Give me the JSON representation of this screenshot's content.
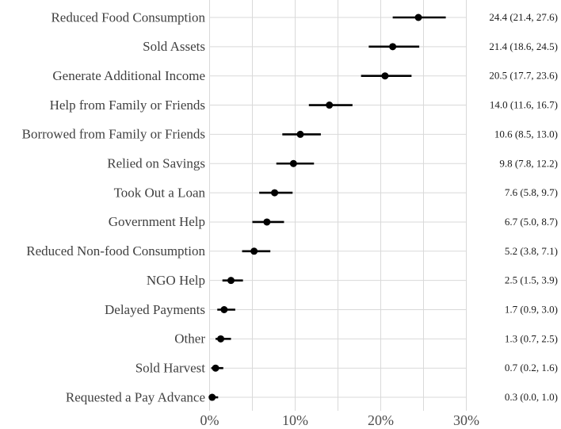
{
  "chart_data": {
    "type": "scatter",
    "variant": "dot-plot-with-error-bars",
    "title": "",
    "xlabel": "",
    "ylabel": "",
    "xlim": [
      0,
      30
    ],
    "x_major_ticks": [
      0,
      10,
      20,
      30
    ],
    "x_major_tick_labels": [
      "0%",
      "10%",
      "20%",
      "30%"
    ],
    "x_minor_ticks": [
      5,
      15,
      25
    ],
    "grid": true,
    "legend": false,
    "rows": [
      {
        "category": "Reduced Food Consumption",
        "estimate": 24.4,
        "ci_low": 21.4,
        "ci_high": 27.6,
        "value_label": "24.4 (21.4, 27.6)"
      },
      {
        "category": "Sold Assets",
        "estimate": 21.4,
        "ci_low": 18.6,
        "ci_high": 24.5,
        "value_label": "21.4 (18.6, 24.5)"
      },
      {
        "category": "Generate Additional Income",
        "estimate": 20.5,
        "ci_low": 17.7,
        "ci_high": 23.6,
        "value_label": "20.5 (17.7, 23.6)"
      },
      {
        "category": "Help from Family or Friends",
        "estimate": 14.0,
        "ci_low": 11.6,
        "ci_high": 16.7,
        "value_label": "14.0 (11.6, 16.7)"
      },
      {
        "category": "Borrowed from Family or Friends",
        "estimate": 10.6,
        "ci_low": 8.5,
        "ci_high": 13.0,
        "value_label": "10.6 (8.5, 13.0)"
      },
      {
        "category": "Relied on Savings",
        "estimate": 9.8,
        "ci_low": 7.8,
        "ci_high": 12.2,
        "value_label": "9.8 (7.8, 12.2)"
      },
      {
        "category": "Took Out a Loan",
        "estimate": 7.6,
        "ci_low": 5.8,
        "ci_high": 9.7,
        "value_label": "7.6 (5.8, 9.7)"
      },
      {
        "category": "Government Help",
        "estimate": 6.7,
        "ci_low": 5.0,
        "ci_high": 8.7,
        "value_label": "6.7 (5.0, 8.7)"
      },
      {
        "category": "Reduced Non-food Consumption",
        "estimate": 5.2,
        "ci_low": 3.8,
        "ci_high": 7.1,
        "value_label": "5.2 (3.8, 7.1)"
      },
      {
        "category": "NGO Help",
        "estimate": 2.5,
        "ci_low": 1.5,
        "ci_high": 3.9,
        "value_label": "2.5 (1.5, 3.9)"
      },
      {
        "category": "Delayed Payments",
        "estimate": 1.7,
        "ci_low": 0.9,
        "ci_high": 3.0,
        "value_label": "1.7 (0.9, 3.0)"
      },
      {
        "category": "Other",
        "estimate": 1.3,
        "ci_low": 0.7,
        "ci_high": 2.5,
        "value_label": "1.3 (0.7, 2.5)"
      },
      {
        "category": "Sold Harvest",
        "estimate": 0.7,
        "ci_low": 0.2,
        "ci_high": 1.6,
        "value_label": "0.7 (0.2, 1.6)"
      },
      {
        "category": "Requested a Pay Advance",
        "estimate": 0.3,
        "ci_low": 0.0,
        "ci_high": 1.0,
        "value_label": "0.3 (0.0, 1.0)"
      }
    ],
    "colors": {
      "point": "#000000",
      "error_bar": "#000000",
      "gridline": "#d9d9d9",
      "category_text": "#404040",
      "axis_text": "#4d4d4d",
      "value_text": "#1a1a1a",
      "background": "#ffffff"
    }
  }
}
